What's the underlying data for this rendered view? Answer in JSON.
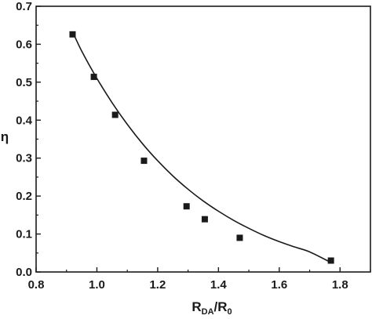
{
  "chart_data": {
    "type": "scatter",
    "xlabel": {
      "main1": "R",
      "sub1": "DA",
      "mid": "/R",
      "sub2": "0"
    },
    "ylabel": "η",
    "xlim": [
      0.8,
      1.9
    ],
    "ylim": [
      0.0,
      0.7
    ],
    "xticks": [
      "0.8",
      "1.0",
      "1.2",
      "1.4",
      "1.6",
      "1.8"
    ],
    "yticks": [
      "0.0",
      "0.1",
      "0.2",
      "0.3",
      "0.4",
      "0.5",
      "0.6",
      "0.7"
    ],
    "grid": false,
    "series": [
      {
        "marker": "square",
        "color": "#1a1a1a",
        "x": [
          0.92,
          0.99,
          1.06,
          1.155,
          1.295,
          1.355,
          1.47,
          1.77
        ],
        "y": [
          0.626,
          0.514,
          0.414,
          0.293,
          0.173,
          0.139,
          0.09,
          0.03
        ]
      }
    ],
    "fit_curve": {
      "color": "#1a1a1a",
      "x": [
        0.92,
        0.95,
        1.0,
        1.05,
        1.1,
        1.15,
        1.2,
        1.25,
        1.3,
        1.35,
        1.4,
        1.45,
        1.5,
        1.55,
        1.6,
        1.65,
        1.7,
        1.77
      ],
      "y": [
        0.633,
        0.582,
        0.51,
        0.446,
        0.389,
        0.338,
        0.293,
        0.253,
        0.218,
        0.187,
        0.16,
        0.136,
        0.115,
        0.096,
        0.08,
        0.066,
        0.053,
        0.025
      ]
    }
  }
}
